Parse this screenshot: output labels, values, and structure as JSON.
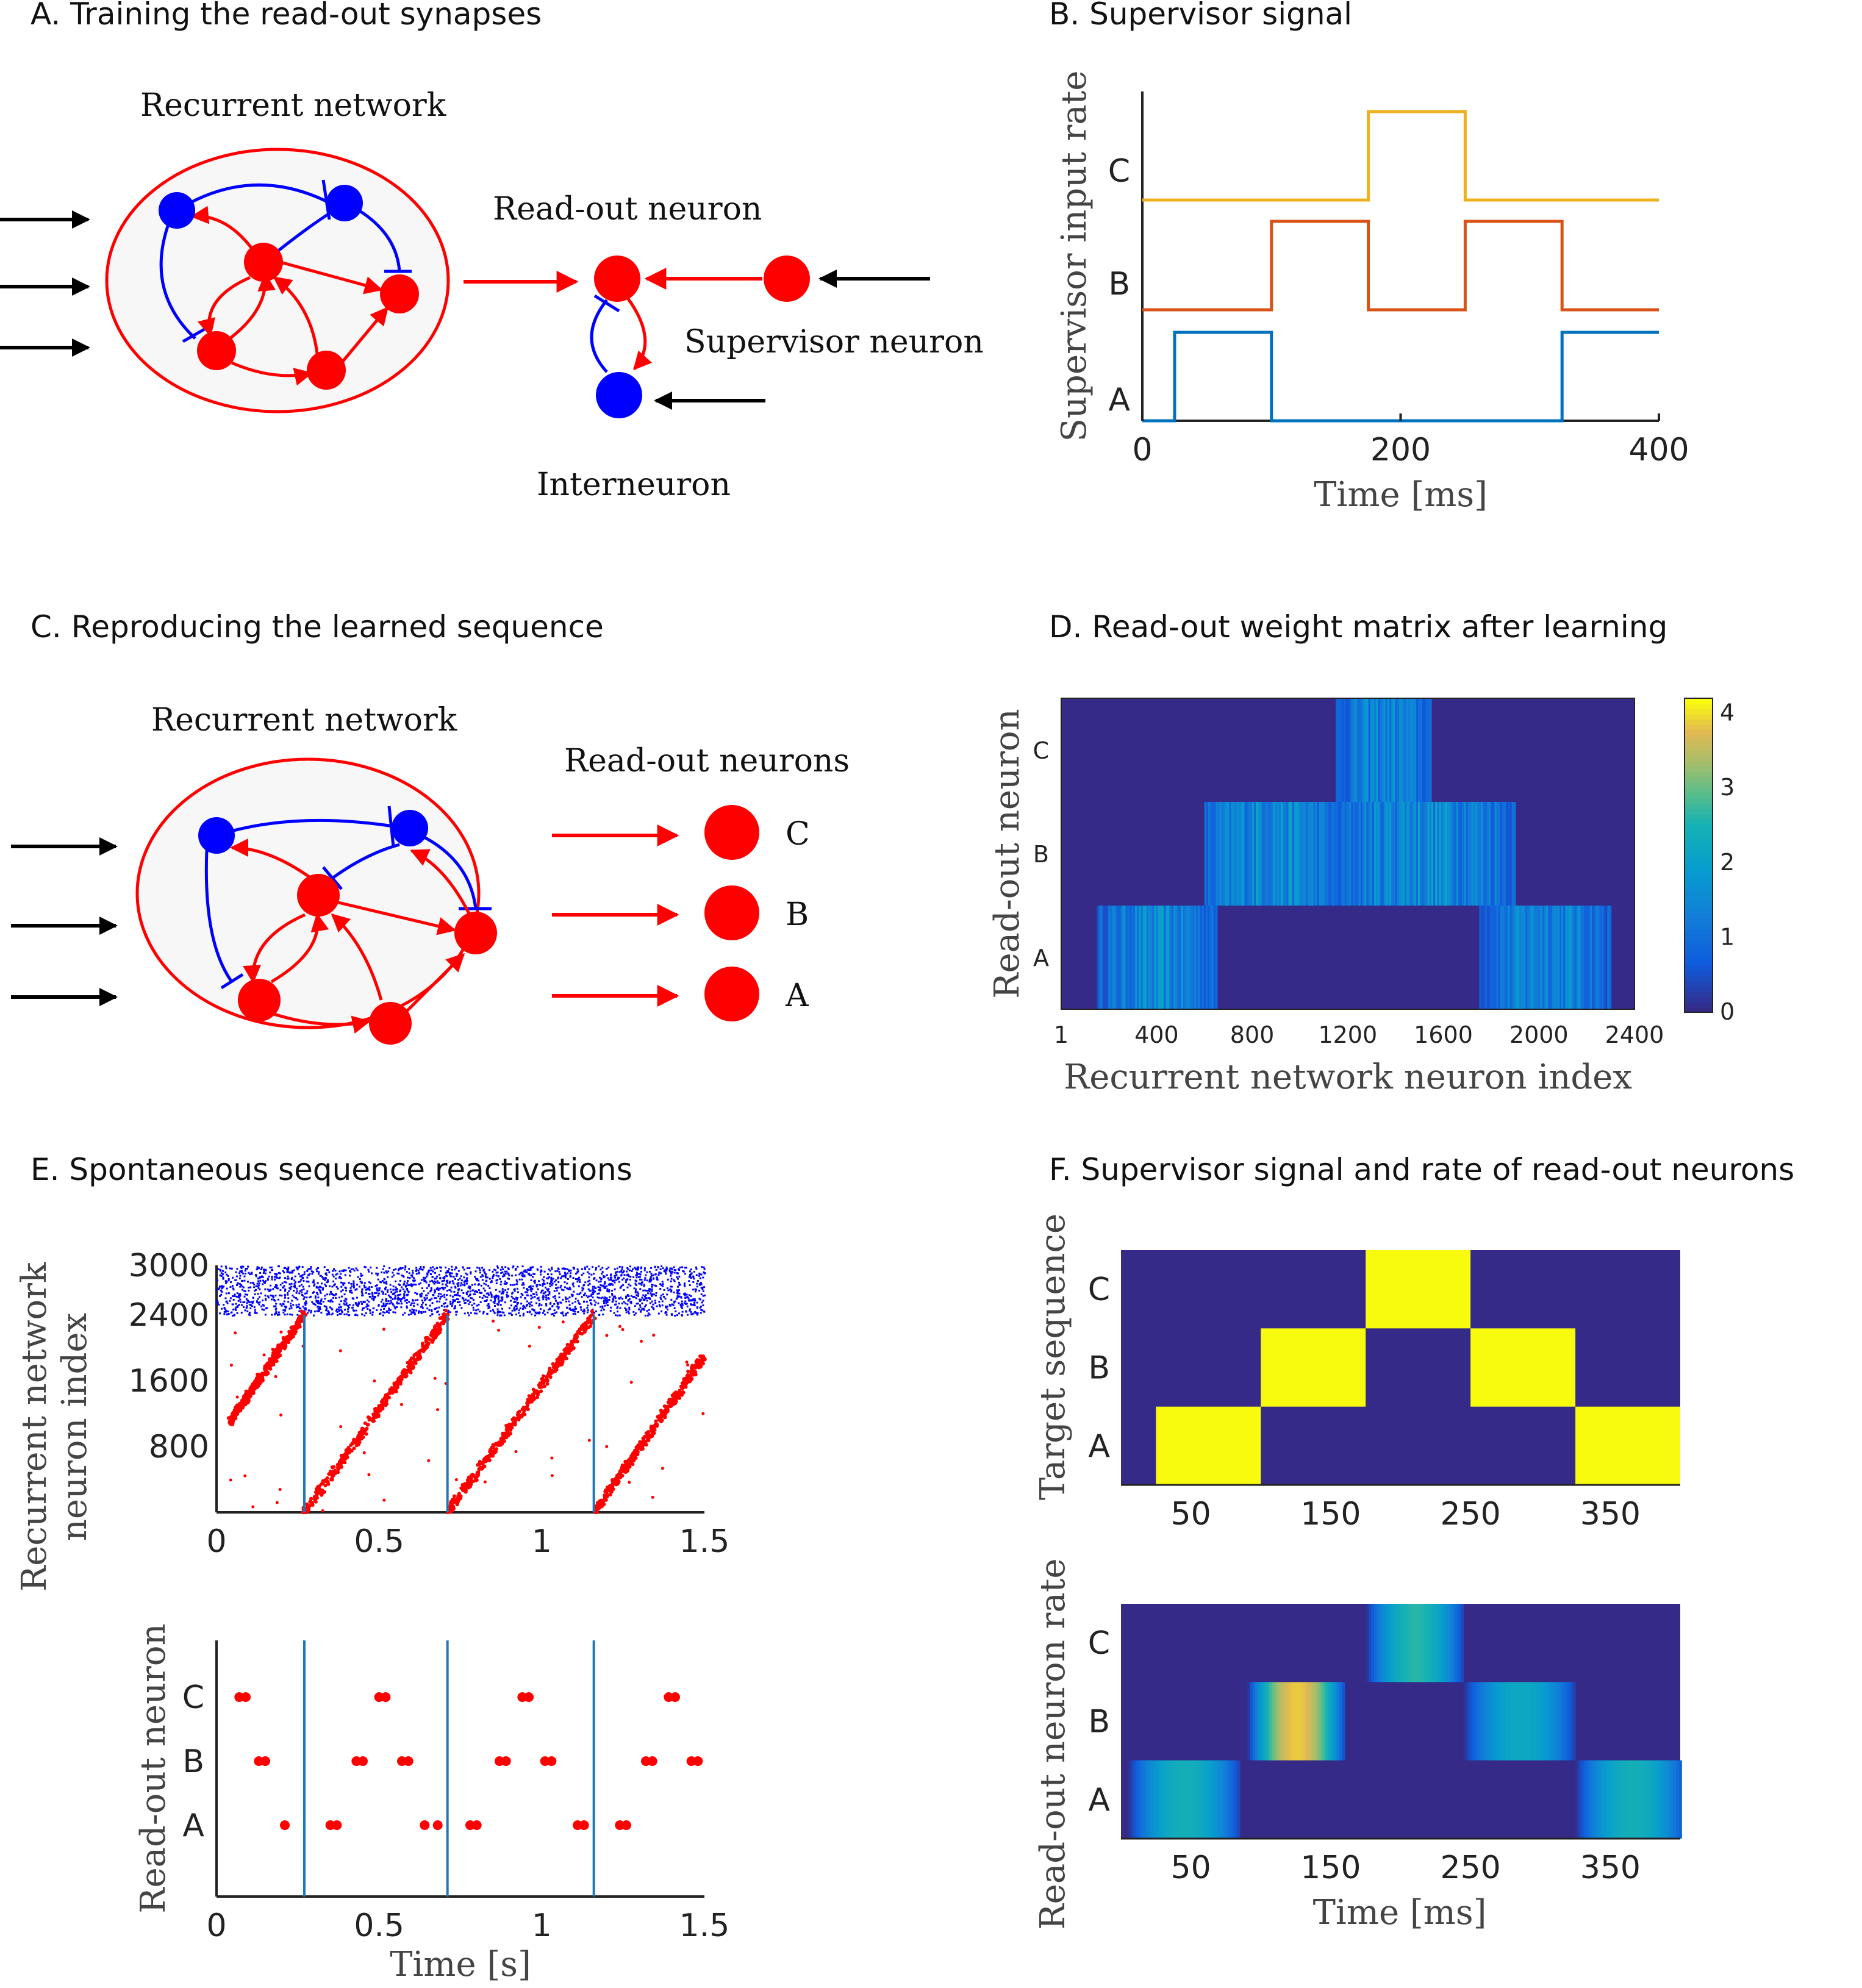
{
  "panels": {
    "a": {
      "title": "A. Training the read-out synapses",
      "recurrent_label": "Recurrent network",
      "readout_label": "Read-out neuron",
      "supervisor_label": "Supervisor neuron",
      "interneuron_label": "Interneuron"
    },
    "b": {
      "title": "B. Supervisor signal"
    },
    "c": {
      "title": "C. Reproducing the learned sequence",
      "recurrent_label": "Recurrent network",
      "readout_label": "Read-out neurons",
      "neuron_labels": [
        "C",
        "B",
        "A"
      ]
    },
    "d": {
      "title": "D. Read-out weight matrix after learning"
    },
    "e": {
      "title": "E. Spontaneous sequence reactivations"
    },
    "f": {
      "title": "F. Supervisor signal and rate of read-out neurons"
    }
  },
  "colors": {
    "excitatory": "#ff0000",
    "inhibitory": "#0000ff",
    "reactivation_line": "#1f77b4",
    "series_a": "#0072bd",
    "series_b": "#d95319",
    "series_c": "#edb120",
    "heat_low": "#352a87",
    "heat_high": "#f9fb0e"
  },
  "chart_data": [
    {
      "id": "B",
      "type": "line",
      "xlabel": "Time [ms]",
      "ylabel": "Supervisor input rate",
      "xlim": [
        0,
        400
      ],
      "xticks": [
        0,
        200,
        400
      ],
      "yticklabels": [
        "A",
        "B",
        "C"
      ],
      "series": [
        {
          "name": "A",
          "x": [
            0,
            25,
            25,
            100,
            100,
            325,
            325,
            400
          ],
          "y": [
            0,
            0,
            1,
            1,
            0,
            0,
            1,
            1
          ]
        },
        {
          "name": "B",
          "x": [
            0,
            100,
            100,
            175,
            175,
            250,
            250,
            325,
            325,
            400
          ],
          "y": [
            0,
            0,
            1,
            1,
            0,
            0,
            1,
            1,
            0,
            0
          ]
        },
        {
          "name": "C",
          "x": [
            0,
            175,
            175,
            250,
            250,
            400
          ],
          "y": [
            0,
            0,
            1,
            1,
            0,
            0
          ]
        }
      ]
    },
    {
      "id": "D",
      "type": "heatmap",
      "xlabel": "Recurrent network neuron index",
      "ylabel": "Read-out neuron",
      "xlim": [
        1,
        2400
      ],
      "xticks": [
        "1",
        "400",
        "800",
        "1200",
        "1600",
        "2000",
        "2400"
      ],
      "rows": [
        "C",
        "B",
        "A"
      ],
      "colorbar_ticks": [
        "4",
        "3",
        "2",
        "1",
        "0"
      ],
      "colorbar_range": [
        0,
        4.2
      ],
      "active_ranges": [
        {
          "row": "A",
          "segments": [
            [
              150,
              650
            ],
            [
              1750,
              2300
            ]
          ],
          "peak": 2.1
        },
        {
          "row": "B",
          "segments": [
            [
              600,
              1150
            ],
            [
              1150,
              1900
            ]
          ],
          "peak": 2.3
        },
        {
          "row": "C",
          "segments": [
            [
              1150,
              1550
            ]
          ],
          "peak": 2.0
        }
      ]
    },
    {
      "id": "E-raster",
      "type": "scatter",
      "ylabel": "Recurrent network neuron index",
      "xlim": [
        0,
        1.5
      ],
      "ylim": [
        0,
        3000
      ],
      "xticks": [
        "0",
        "0.5",
        "1",
        "1.5"
      ],
      "yticks": [
        "3000",
        "2400",
        "1600",
        "800"
      ],
      "inhibitory_band": [
        2400,
        3000
      ],
      "reactivation_times": [
        0.27,
        0.71,
        1.16
      ],
      "sequence_sweeps": [
        {
          "t0": 0.04,
          "t1": 0.27,
          "n0": 1100,
          "n1": 2400
        },
        {
          "t0": 0.27,
          "t1": 0.71,
          "n0": 0,
          "n1": 2400
        },
        {
          "t0": 0.71,
          "t1": 1.16,
          "n0": 0,
          "n1": 2400
        },
        {
          "t0": 1.16,
          "t1": 1.5,
          "n0": 0,
          "n1": 1900
        }
      ]
    },
    {
      "id": "E-readout",
      "type": "scatter",
      "xlabel": "Time [s]",
      "ylabel": "Read-out neuron",
      "xlim": [
        0,
        1.5
      ],
      "xticks": [
        "0",
        "0.5",
        "1",
        "1.5"
      ],
      "yticklabels": [
        "A",
        "B",
        "C"
      ],
      "reactivation_times": [
        0.27,
        0.71,
        1.16
      ],
      "spikes": {
        "C": [
          0.07,
          0.09,
          0.5,
          0.52,
          0.94,
          0.96,
          1.39,
          1.41
        ],
        "B": [
          0.13,
          0.15,
          0.43,
          0.45,
          0.57,
          0.59,
          0.87,
          0.89,
          1.01,
          1.03,
          1.32,
          1.34,
          1.46,
          1.48
        ],
        "A": [
          0.21,
          0.35,
          0.37,
          0.64,
          0.68,
          0.78,
          0.8,
          1.11,
          1.13,
          1.24,
          1.26
        ]
      }
    },
    {
      "id": "F-top",
      "type": "heatmap",
      "ylabel": "Target sequence",
      "xlim": [
        0,
        400
      ],
      "xticks": [
        "50",
        "150",
        "250",
        "350"
      ],
      "rows": [
        "C",
        "B",
        "A"
      ],
      "blocks": [
        {
          "row": "A",
          "x0": 25,
          "x1": 100
        },
        {
          "row": "B",
          "x0": 100,
          "x1": 175
        },
        {
          "row": "C",
          "x0": 175,
          "x1": 250
        },
        {
          "row": "B",
          "x0": 250,
          "x1": 325
        },
        {
          "row": "A",
          "x0": 325,
          "x1": 400
        }
      ]
    },
    {
      "id": "F-bottom",
      "type": "heatmap",
      "xlabel": "Time [ms]",
      "ylabel": "Read-out neuron rate",
      "xlim": [
        0,
        400
      ],
      "xticks": [
        "50",
        "150",
        "250",
        "350"
      ],
      "rows": [
        "C",
        "B",
        "A"
      ],
      "bumps": [
        {
          "row": "A",
          "center": 45,
          "width": 80,
          "peak": 0.55
        },
        {
          "row": "B",
          "center": 125,
          "width": 70,
          "peak": 0.9
        },
        {
          "row": "C",
          "center": 210,
          "width": 70,
          "peak": 0.6
        },
        {
          "row": "B",
          "center": 285,
          "width": 80,
          "peak": 0.5
        },
        {
          "row": "A",
          "center": 365,
          "width": 80,
          "peak": 0.55
        }
      ]
    }
  ]
}
